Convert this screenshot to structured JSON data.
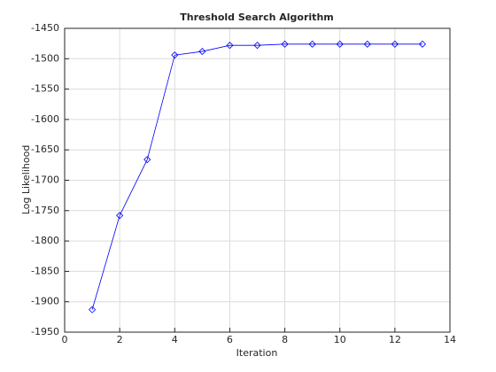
{
  "chart_data": {
    "type": "line",
    "title": "Threshold Search Algorithm",
    "x_label": "Iteration",
    "y_label": "Log Likelihood",
    "x": [
      1,
      2,
      3,
      4,
      5,
      6,
      7,
      8,
      9,
      10,
      11,
      12,
      13
    ],
    "series": [
      {
        "name": "Log Likelihood",
        "color": "#0000ff",
        "values": [
          -1913,
          -1758,
          -1666,
          -1494,
          -1488,
          -1478,
          -1478,
          -1476,
          -1476,
          -1476,
          -1476,
          -1476,
          -1476
        ]
      }
    ],
    "xlim": [
      0,
      14
    ],
    "xticks": [
      0,
      2,
      4,
      6,
      8,
      10,
      12,
      14
    ],
    "ylim": [
      -1950,
      -1450
    ],
    "yticks": [
      -1950,
      -1900,
      -1850,
      -1800,
      -1750,
      -1700,
      -1650,
      -1600,
      -1550,
      -1500,
      -1450
    ],
    "grid": true,
    "marker": "diamond"
  }
}
